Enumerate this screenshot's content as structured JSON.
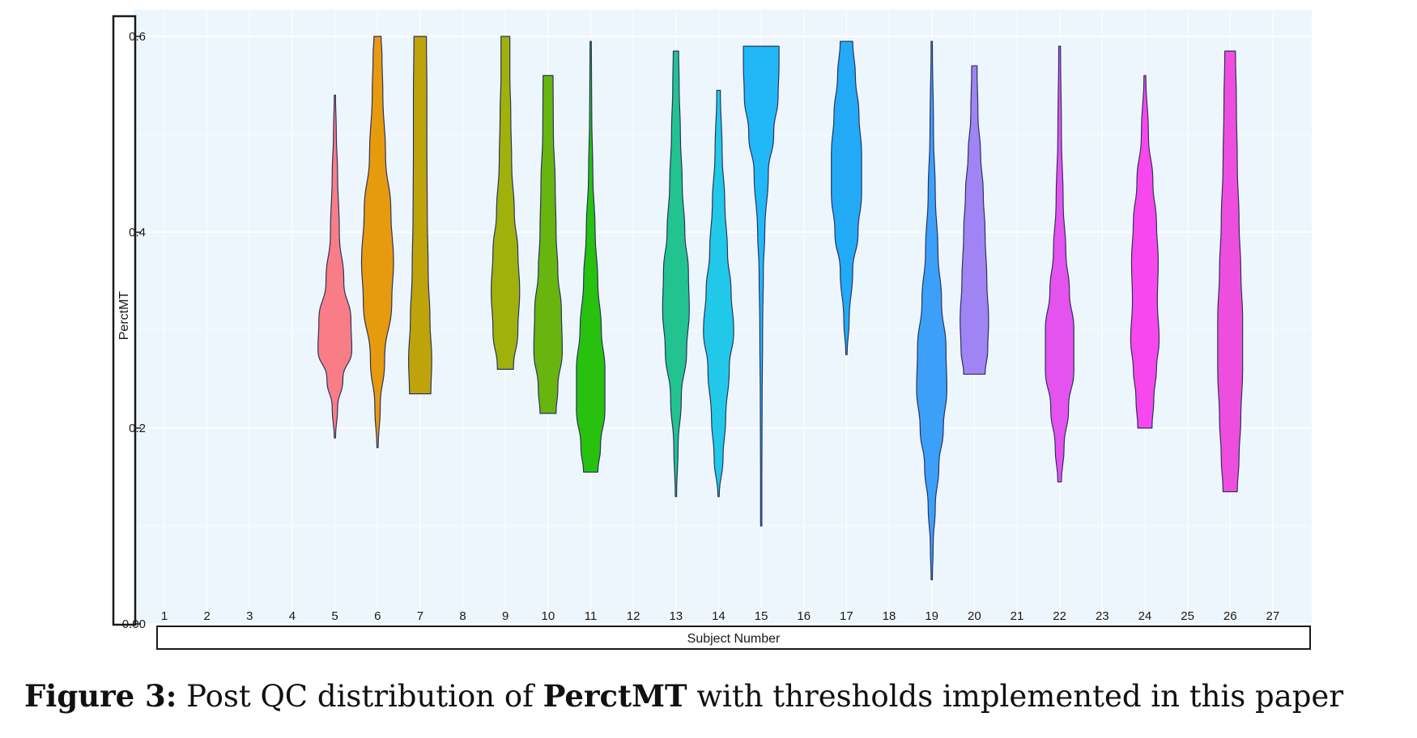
{
  "chart_data": {
    "type": "violin",
    "xlabel": "Subject Number",
    "ylabel": "PerctMT",
    "ylim": [
      0.0,
      0.6
    ],
    "y_ticks": [
      "0.00",
      "0.2",
      "0.4",
      "0.6"
    ],
    "y_tick_values": [
      0.0,
      0.2,
      0.4,
      0.6
    ],
    "categories": [
      "1",
      "2",
      "3",
      "4",
      "5",
      "6",
      "7",
      "8",
      "9",
      "10",
      "11",
      "12",
      "13",
      "14",
      "15",
      "16",
      "17",
      "18",
      "19",
      "20",
      "21",
      "22",
      "23",
      "24",
      "25",
      "26",
      "27"
    ],
    "grid": true,
    "legend": "none",
    "series": [
      {
        "subject": "5",
        "color": "#f87d86",
        "min": 0.19,
        "max": 0.54,
        "profile": [
          [
            0.19,
            0.02
          ],
          [
            0.22,
            0.15
          ],
          [
            0.25,
            0.45
          ],
          [
            0.28,
            0.95
          ],
          [
            0.31,
            0.9
          ],
          [
            0.35,
            0.5
          ],
          [
            0.4,
            0.25
          ],
          [
            0.46,
            0.15
          ],
          [
            0.5,
            0.08
          ],
          [
            0.54,
            0.02
          ]
        ]
      },
      {
        "subject": "6",
        "color": "#e69a0d",
        "min": 0.18,
        "max": 0.6,
        "profile": [
          [
            0.18,
            0.02
          ],
          [
            0.22,
            0.15
          ],
          [
            0.27,
            0.4
          ],
          [
            0.33,
            0.8
          ],
          [
            0.37,
            0.9
          ],
          [
            0.42,
            0.75
          ],
          [
            0.48,
            0.45
          ],
          [
            0.54,
            0.3
          ],
          [
            0.58,
            0.25
          ],
          [
            0.6,
            0.2
          ]
        ]
      },
      {
        "subject": "7",
        "color": "#bfa30a",
        "min": 0.235,
        "max": 0.6,
        "profile": [
          [
            0.235,
            0.6
          ],
          [
            0.27,
            0.65
          ],
          [
            0.31,
            0.55
          ],
          [
            0.36,
            0.45
          ],
          [
            0.42,
            0.4
          ],
          [
            0.48,
            0.38
          ],
          [
            0.54,
            0.38
          ],
          [
            0.6,
            0.35
          ]
        ]
      },
      {
        "subject": "9",
        "color": "#a0b10c",
        "min": 0.26,
        "max": 0.6,
        "profile": [
          [
            0.26,
            0.45
          ],
          [
            0.3,
            0.7
          ],
          [
            0.34,
            0.8
          ],
          [
            0.38,
            0.7
          ],
          [
            0.42,
            0.5
          ],
          [
            0.47,
            0.35
          ],
          [
            0.52,
            0.3
          ],
          [
            0.56,
            0.25
          ],
          [
            0.6,
            0.25
          ]
        ]
      },
      {
        "subject": "10",
        "color": "#67b50e",
        "min": 0.215,
        "max": 0.56,
        "profile": [
          [
            0.215,
            0.45
          ],
          [
            0.24,
            0.55
          ],
          [
            0.28,
            0.8
          ],
          [
            0.32,
            0.75
          ],
          [
            0.36,
            0.55
          ],
          [
            0.4,
            0.45
          ],
          [
            0.45,
            0.4
          ],
          [
            0.5,
            0.3
          ],
          [
            0.56,
            0.28
          ]
        ]
      },
      {
        "subject": "11",
        "color": "#27c10e",
        "min": 0.155,
        "max": 0.595,
        "profile": [
          [
            0.155,
            0.4
          ],
          [
            0.18,
            0.55
          ],
          [
            0.22,
            0.8
          ],
          [
            0.26,
            0.8
          ],
          [
            0.3,
            0.6
          ],
          [
            0.35,
            0.4
          ],
          [
            0.4,
            0.25
          ],
          [
            0.46,
            0.12
          ],
          [
            0.52,
            0.06
          ],
          [
            0.595,
            0.02
          ]
        ]
      },
      {
        "subject": "13",
        "color": "#22c38f",
        "min": 0.13,
        "max": 0.585,
        "profile": [
          [
            0.13,
            0.02
          ],
          [
            0.18,
            0.12
          ],
          [
            0.23,
            0.3
          ],
          [
            0.28,
            0.6
          ],
          [
            0.32,
            0.75
          ],
          [
            0.36,
            0.7
          ],
          [
            0.4,
            0.5
          ],
          [
            0.45,
            0.35
          ],
          [
            0.5,
            0.25
          ],
          [
            0.55,
            0.18
          ],
          [
            0.585,
            0.15
          ]
        ]
      },
      {
        "subject": "14",
        "color": "#22c8e8",
        "min": 0.13,
        "max": 0.545,
        "profile": [
          [
            0.13,
            0.02
          ],
          [
            0.17,
            0.25
          ],
          [
            0.21,
            0.4
          ],
          [
            0.26,
            0.6
          ],
          [
            0.3,
            0.85
          ],
          [
            0.34,
            0.7
          ],
          [
            0.38,
            0.5
          ],
          [
            0.43,
            0.35
          ],
          [
            0.48,
            0.2
          ],
          [
            0.545,
            0.1
          ]
        ]
      },
      {
        "subject": "15",
        "color": "#22b8f8",
        "min": 0.1,
        "max": 0.59,
        "profile": [
          [
            0.1,
            0.01
          ],
          [
            0.15,
            0.03
          ],
          [
            0.22,
            0.05
          ],
          [
            0.3,
            0.08
          ],
          [
            0.36,
            0.12
          ],
          [
            0.4,
            0.2
          ],
          [
            0.46,
            0.4
          ],
          [
            0.5,
            0.7
          ],
          [
            0.54,
            0.95
          ],
          [
            0.57,
            1.0
          ],
          [
            0.59,
            1.0
          ]
        ]
      },
      {
        "subject": "17",
        "color": "#22aaf6",
        "min": 0.275,
        "max": 0.595,
        "profile": [
          [
            0.275,
            0.02
          ],
          [
            0.31,
            0.15
          ],
          [
            0.36,
            0.35
          ],
          [
            0.4,
            0.65
          ],
          [
            0.44,
            0.85
          ],
          [
            0.48,
            0.85
          ],
          [
            0.52,
            0.7
          ],
          [
            0.56,
            0.5
          ],
          [
            0.595,
            0.35
          ]
        ]
      },
      {
        "subject": "19",
        "color": "#3da0f8",
        "min": 0.045,
        "max": 0.595,
        "profile": [
          [
            0.045,
            0.01
          ],
          [
            0.08,
            0.08
          ],
          [
            0.12,
            0.2
          ],
          [
            0.16,
            0.4
          ],
          [
            0.2,
            0.65
          ],
          [
            0.24,
            0.85
          ],
          [
            0.28,
            0.8
          ],
          [
            0.33,
            0.55
          ],
          [
            0.38,
            0.35
          ],
          [
            0.44,
            0.2
          ],
          [
            0.5,
            0.1
          ],
          [
            0.595,
            0.02
          ]
        ]
      },
      {
        "subject": "20",
        "color": "#a084f4",
        "min": 0.255,
        "max": 0.57,
        "profile": [
          [
            0.255,
            0.6
          ],
          [
            0.28,
            0.75
          ],
          [
            0.31,
            0.8
          ],
          [
            0.35,
            0.7
          ],
          [
            0.4,
            0.6
          ],
          [
            0.44,
            0.5
          ],
          [
            0.48,
            0.35
          ],
          [
            0.52,
            0.2
          ],
          [
            0.57,
            0.15
          ]
        ]
      },
      {
        "subject": "22",
        "color": "#e453ee",
        "min": 0.145,
        "max": 0.59,
        "profile": [
          [
            0.145,
            0.1
          ],
          [
            0.18,
            0.25
          ],
          [
            0.22,
            0.5
          ],
          [
            0.26,
            0.8
          ],
          [
            0.3,
            0.8
          ],
          [
            0.34,
            0.55
          ],
          [
            0.38,
            0.35
          ],
          [
            0.43,
            0.2
          ],
          [
            0.5,
            0.1
          ],
          [
            0.59,
            0.05
          ]
        ]
      },
      {
        "subject": "24",
        "color": "#f748ee",
        "min": 0.2,
        "max": 0.56,
        "profile": [
          [
            0.2,
            0.4
          ],
          [
            0.23,
            0.5
          ],
          [
            0.26,
            0.65
          ],
          [
            0.29,
            0.8
          ],
          [
            0.33,
            0.7
          ],
          [
            0.37,
            0.75
          ],
          [
            0.41,
            0.65
          ],
          [
            0.45,
            0.45
          ],
          [
            0.5,
            0.2
          ],
          [
            0.56,
            0.05
          ]
        ]
      },
      {
        "subject": "26",
        "color": "#ee4ede",
        "min": 0.135,
        "max": 0.585,
        "profile": [
          [
            0.135,
            0.4
          ],
          [
            0.17,
            0.5
          ],
          [
            0.21,
            0.6
          ],
          [
            0.26,
            0.7
          ],
          [
            0.31,
            0.7
          ],
          [
            0.36,
            0.6
          ],
          [
            0.41,
            0.5
          ],
          [
            0.47,
            0.4
          ],
          [
            0.53,
            0.35
          ],
          [
            0.585,
            0.3
          ]
        ]
      }
    ]
  },
  "caption": {
    "label": "Figure 3:",
    "text_before": " Post QC distribution of ",
    "metric": "PerctMT",
    "text_after": " with thresholds implemented in this paper"
  }
}
